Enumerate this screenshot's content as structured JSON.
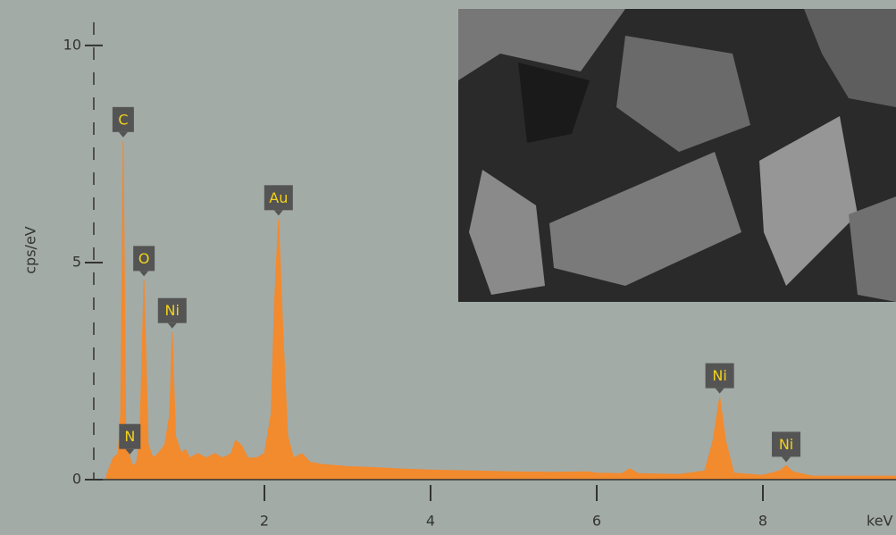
{
  "chart_data": {
    "type": "area",
    "x_label": "keV",
    "y_label": "cps/eV",
    "x": [
      0.1,
      0.18,
      0.24,
      0.27,
      0.3,
      0.33,
      0.38,
      0.42,
      0.46,
      0.5,
      0.55,
      0.6,
      0.66,
      0.72,
      0.8,
      0.86,
      0.89,
      0.93,
      1.0,
      1.05,
      1.1,
      1.2,
      1.3,
      1.4,
      1.5,
      1.6,
      1.65,
      1.72,
      1.8,
      1.9,
      2.0,
      2.08,
      2.12,
      2.17,
      2.22,
      2.28,
      2.35,
      2.45,
      2.55,
      2.7,
      3.0,
      3.3,
      3.6,
      4.0,
      4.5,
      5.0,
      5.5,
      5.9,
      6.0,
      6.3,
      6.4,
      6.5,
      7.0,
      7.3,
      7.4,
      7.48,
      7.55,
      7.65,
      8.0,
      8.2,
      8.28,
      8.36,
      8.6,
      9.0,
      9.6
    ],
    "values": [
      0.1,
      0.5,
      0.6,
      1.5,
      7.8,
      1.2,
      0.5,
      0.3,
      0.4,
      0.9,
      4.6,
      0.8,
      0.5,
      0.6,
      0.8,
      1.5,
      3.4,
      1.0,
      0.6,
      0.7,
      0.5,
      0.6,
      0.5,
      0.6,
      0.5,
      0.6,
      0.9,
      0.8,
      0.5,
      0.5,
      0.6,
      1.5,
      4.0,
      6.0,
      3.5,
      1.0,
      0.5,
      0.6,
      0.4,
      0.35,
      0.3,
      0.28,
      0.25,
      0.22,
      0.2,
      0.18,
      0.17,
      0.18,
      0.15,
      0.14,
      0.25,
      0.14,
      0.12,
      0.2,
      0.9,
      1.9,
      0.9,
      0.15,
      0.1,
      0.2,
      0.32,
      0.18,
      0.08,
      0.08,
      0.08
    ],
    "color": "#f28a2e",
    "xlim": [
      0,
      9.6
    ],
    "xticks": [
      2,
      4,
      6,
      8
    ],
    "ylim": [
      0,
      10.8
    ],
    "yticks": [
      0,
      5,
      10
    ],
    "annotations": [
      {
        "text": "C",
        "x": 0.3,
        "y": 7.8
      },
      {
        "text": "N",
        "x": 0.38,
        "y": 0.5
      },
      {
        "text": "O",
        "x": 0.55,
        "y": 4.6
      },
      {
        "text": "Ni",
        "x": 0.89,
        "y": 3.4
      },
      {
        "text": "Au",
        "x": 2.17,
        "y": 6.0
      },
      {
        "text": "Ni",
        "x": 7.48,
        "y": 1.9
      },
      {
        "text": "Ni",
        "x": 8.28,
        "y": 0.32
      }
    ]
  }
}
